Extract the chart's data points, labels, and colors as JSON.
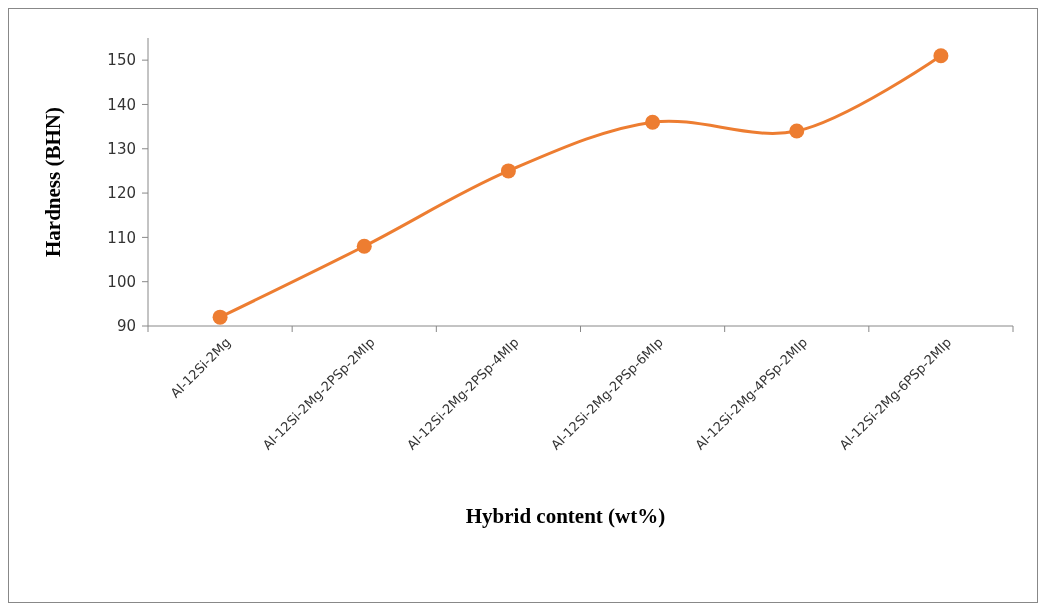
{
  "chart_data": {
    "type": "line",
    "xlabel": "Hybrid content (wt%)",
    "ylabel": "Hardness (BHN)",
    "categories": [
      "Al-12Si-2Mg",
      "Al-12Si-2Mg-2PSp-2MIp",
      "Al-12Si-2Mg-2PSp-4MIp",
      "Al-12Si-2Mg-2PSp-6MIp",
      "Al-12Si-2Mg-4PSp-2MIp",
      "Al-12Si-2Mg-6PSp-2MIp"
    ],
    "series": [
      {
        "color": "#ed7d31",
        "values": [
          92,
          108,
          125,
          136,
          134,
          151
        ]
      }
    ],
    "ylim": [
      90,
      155
    ],
    "yticks": [
      90,
      100,
      110,
      120,
      130,
      140,
      150
    ],
    "marker": "circle"
  }
}
